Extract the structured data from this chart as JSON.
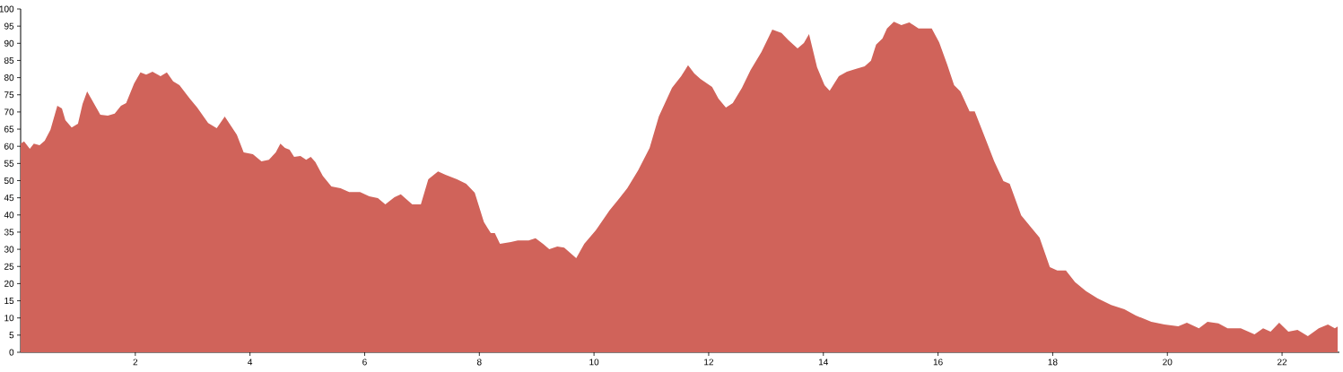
{
  "chart_data": {
    "type": "area",
    "color": "#d0635a",
    "xlim": [
      0,
      23
    ],
    "ylim": [
      0,
      100
    ],
    "xticks": [
      2,
      4,
      6,
      8,
      10,
      12,
      14,
      16,
      18,
      20,
      22
    ],
    "yticks": [
      0,
      5,
      10,
      15,
      20,
      25,
      30,
      35,
      40,
      45,
      50,
      55,
      60,
      65,
      70,
      75,
      80,
      85,
      90,
      95,
      100
    ],
    "grid": false,
    "x": [
      0,
      0.06,
      0.16,
      0.23,
      0.33,
      0.42,
      0.52,
      0.64,
      0.72,
      0.78,
      0.89,
      1.0,
      1.08,
      1.16,
      1.39,
      1.52,
      1.64,
      1.75,
      1.84,
      1.98,
      2.09,
      2.19,
      2.3,
      2.44,
      2.55,
      2.66,
      2.77,
      2.95,
      3.08,
      3.27,
      3.42,
      3.56,
      3.77,
      3.89,
      4.05,
      4.2,
      4.33,
      4.45,
      4.53,
      4.61,
      4.69,
      4.77,
      4.88,
      4.98,
      5.06,
      5.14,
      5.27,
      5.42,
      5.58,
      5.73,
      5.92,
      6.08,
      6.23,
      6.36,
      6.52,
      6.63,
      6.83,
      6.98,
      7.11,
      7.28,
      7.41,
      7.61,
      7.77,
      7.92,
      8.08,
      8.2,
      8.27,
      8.36,
      8.55,
      8.67,
      8.86,
      8.98,
      9.11,
      9.22,
      9.36,
      9.48,
      9.69,
      9.83,
      10.03,
      10.27,
      10.42,
      10.58,
      10.77,
      10.97,
      11.13,
      11.36,
      11.52,
      11.64,
      11.75,
      11.86,
      12.06,
      12.17,
      12.3,
      12.42,
      12.58,
      12.73,
      12.92,
      13.11,
      13.27,
      13.39,
      13.55,
      13.66,
      13.75,
      13.89,
      14.02,
      14.11,
      14.27,
      14.41,
      14.56,
      14.72,
      14.83,
      14.92,
      15.03,
      15.11,
      15.23,
      15.36,
      15.5,
      15.66,
      15.89,
      16.02,
      16.16,
      16.28,
      16.39,
      16.55,
      16.64,
      16.83,
      16.98,
      17.14,
      17.25,
      17.45,
      17.64,
      17.77,
      17.95,
      18.08,
      18.23,
      18.39,
      18.58,
      18.78,
      19.02,
      19.25,
      19.45,
      19.72,
      19.95,
      20.19,
      20.34,
      20.55,
      20.7,
      20.89,
      21.05,
      21.28,
      21.52,
      21.67,
      21.8,
      21.95,
      22.11,
      22.27,
      22.45,
      22.64,
      22.8,
      22.92,
      22.97
    ],
    "values": [
      60.8,
      61.4,
      59.3,
      60.8,
      60.3,
      61.6,
      64.8,
      71.8,
      71,
      67.6,
      65.5,
      66.6,
      72.3,
      76,
      69.2,
      68.9,
      69.5,
      71.8,
      72.6,
      78.3,
      81.5,
      80.9,
      81.7,
      80.4,
      81.5,
      78.9,
      77.8,
      73.9,
      71.3,
      66.8,
      65.3,
      68.7,
      63.4,
      58.2,
      57.7,
      55.6,
      56.1,
      58.2,
      60.8,
      59.5,
      59,
      56.9,
      57.2,
      56.1,
      56.9,
      55.4,
      51.4,
      48.3,
      47.8,
      46.7,
      46.7,
      45.4,
      44.9,
      43.1,
      45.2,
      46,
      43.1,
      43.1,
      50.4,
      52.7,
      51.7,
      50.4,
      49.1,
      46.5,
      37.9,
      34.7,
      34.7,
      31.6,
      32.1,
      32.6,
      32.6,
      33.2,
      31.6,
      30,
      30.8,
      30.5,
      27.4,
      31.6,
      35.5,
      41.3,
      44.4,
      47.8,
      53,
      59.5,
      68.7,
      77,
      80.4,
      83.6,
      81.2,
      79.6,
      77.3,
      73.9,
      71.3,
      72.6,
      77,
      82.2,
      87.5,
      94,
      93,
      90.9,
      88.5,
      90.1,
      92.7,
      83,
      77.8,
      76.2,
      80.4,
      81.7,
      82.5,
      83.3,
      84.9,
      89.6,
      91.4,
      94.3,
      96.3,
      95.3,
      96.1,
      94.3,
      94.3,
      90.3,
      83.8,
      77.8,
      76,
      70.2,
      70.2,
      62.1,
      55.6,
      49.9,
      49.1,
      39.9,
      36,
      33.4,
      24.8,
      23.8,
      23.8,
      20.4,
      17.8,
      15.7,
      13.8,
      12.5,
      10.7,
      8.9,
      8.1,
      7.6,
      8.6,
      7,
      8.9,
      8.4,
      7,
      7,
      5.2,
      7,
      6,
      8.6,
      6,
      6.5,
      4.7,
      7,
      8.1,
      7,
      7.5
    ]
  }
}
